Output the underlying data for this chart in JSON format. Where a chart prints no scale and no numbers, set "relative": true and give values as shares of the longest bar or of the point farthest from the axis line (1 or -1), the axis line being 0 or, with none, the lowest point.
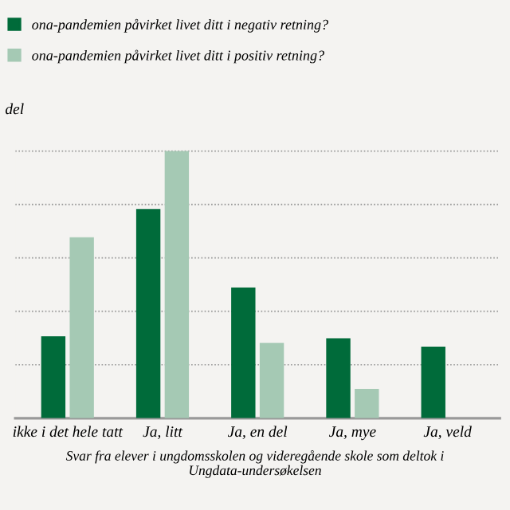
{
  "chart_data": {
    "type": "bar",
    "relative": true,
    "ylabel": "del",
    "categories": [
      "ikke i det hele tatt",
      "Ja, litt",
      "Ja, en del",
      "Ja, mye",
      "Ja, veld"
    ],
    "series": [
      {
        "name": "ona-pandemien påvirket livet ditt i negativ retning?",
        "color": "#006b3a",
        "values": [
          0.307,
          0.783,
          0.489,
          0.299,
          0.268
        ]
      },
      {
        "name": "ona-pandemien påvirket livet ditt i positiv retning?",
        "color": "#a5c9b4",
        "values": [
          0.677,
          1,
          0.282,
          0.11,
          null
        ]
      }
    ],
    "grid": "y",
    "legend": "top left",
    "annotations": [
      "Svar fra elever i ungdomsskolen og videregående skole som deltok i Ungdata-undersøkelsen"
    ]
  }
}
